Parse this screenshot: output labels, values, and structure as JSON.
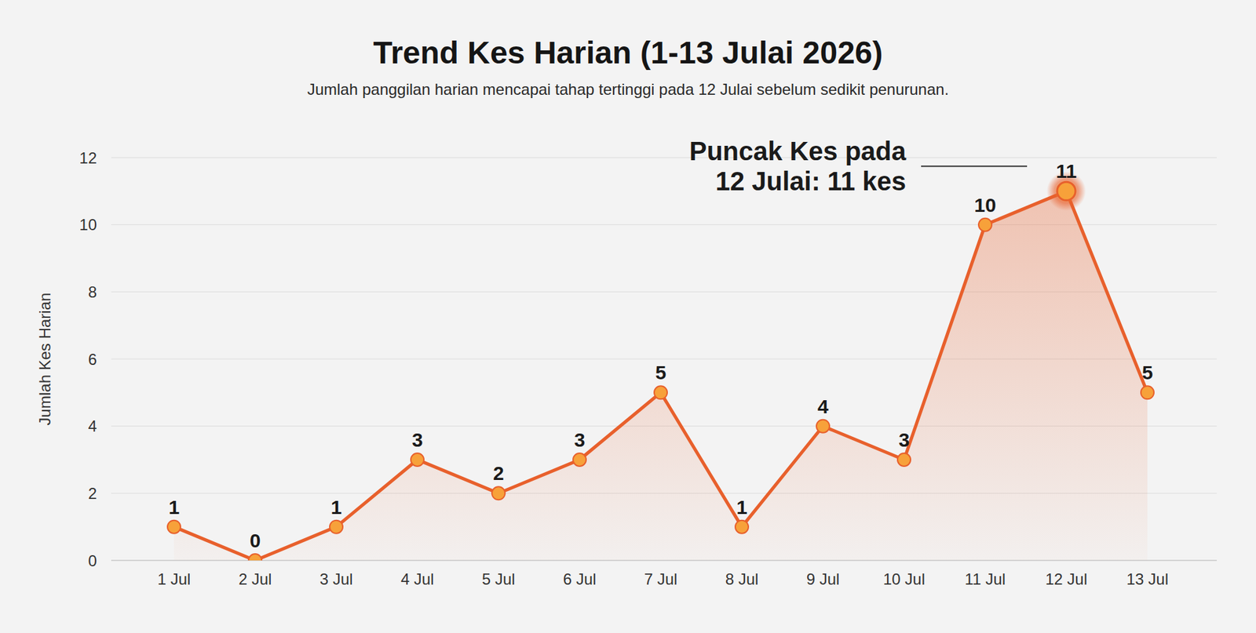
{
  "chart_data": {
    "type": "line",
    "title": "Trend Kes Harian (1-13 Julai 2026)",
    "subtitle": "Jumlah panggilan harian mencapai tahap tertinggi pada 12 Julai sebelum sedikit penurunan.",
    "ylabel": "Jumlah Kes Harian",
    "annotation": "Puncak Kes pada 12 Julai: 11 kes",
    "categories": [
      "1 Jul",
      "2 Jul",
      "3 Jul",
      "4 Jul",
      "5 Jul",
      "6 Jul",
      "7 Jul",
      "8 Jul",
      "9 Jul",
      "10 Jul",
      "11 Jul",
      "12 Jul",
      "13 Jul"
    ],
    "values": [
      1,
      0,
      1,
      3,
      2,
      3,
      5,
      1,
      4,
      3,
      10,
      11,
      5
    ],
    "color": "#e8602c",
    "ylim": [
      0,
      12
    ],
    "yticks": [
      0,
      2,
      4,
      6,
      8,
      10,
      12
    ],
    "grid": true,
    "data_labels": true
  }
}
